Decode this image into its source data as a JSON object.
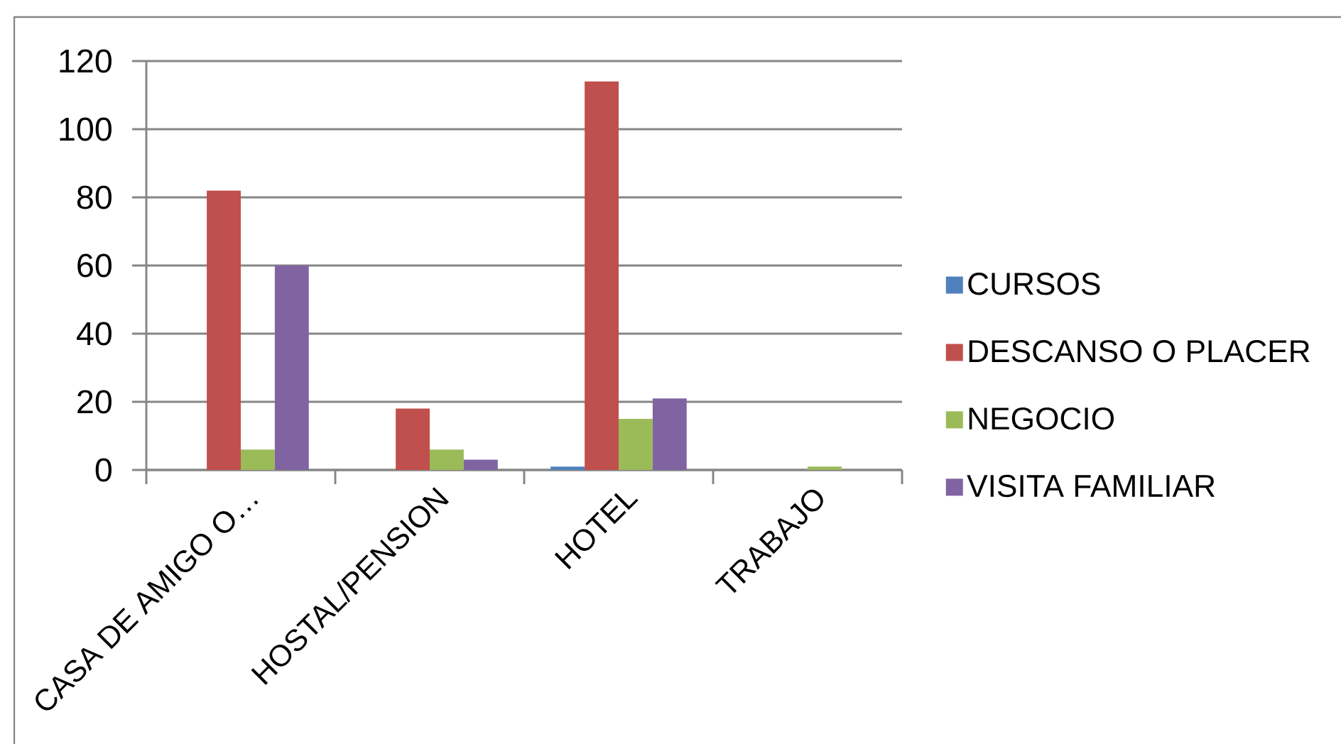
{
  "chart_data": {
    "type": "bar",
    "categories": [
      "CASA DE AMIGO O…",
      "HOSTAL/PENSION",
      "HOTEL",
      "TRABAJO"
    ],
    "series": [
      {
        "name": "CURSOS",
        "color": "#4f81bd",
        "values": [
          0,
          0,
          1,
          0
        ]
      },
      {
        "name": "DESCANSO O PLACER",
        "color": "#c0504d",
        "values": [
          82,
          18,
          114,
          0
        ]
      },
      {
        "name": "NEGOCIO",
        "color": "#9bbb59",
        "values": [
          6,
          6,
          15,
          1
        ]
      },
      {
        "name": "VISITA FAMILIAR",
        "color": "#8064a2",
        "values": [
          60,
          3,
          21,
          0
        ]
      }
    ],
    "ylim": [
      0,
      120
    ],
    "yticks": [
      0,
      20,
      40,
      60,
      80,
      100,
      120
    ],
    "grid": "y",
    "legend": "right"
  }
}
